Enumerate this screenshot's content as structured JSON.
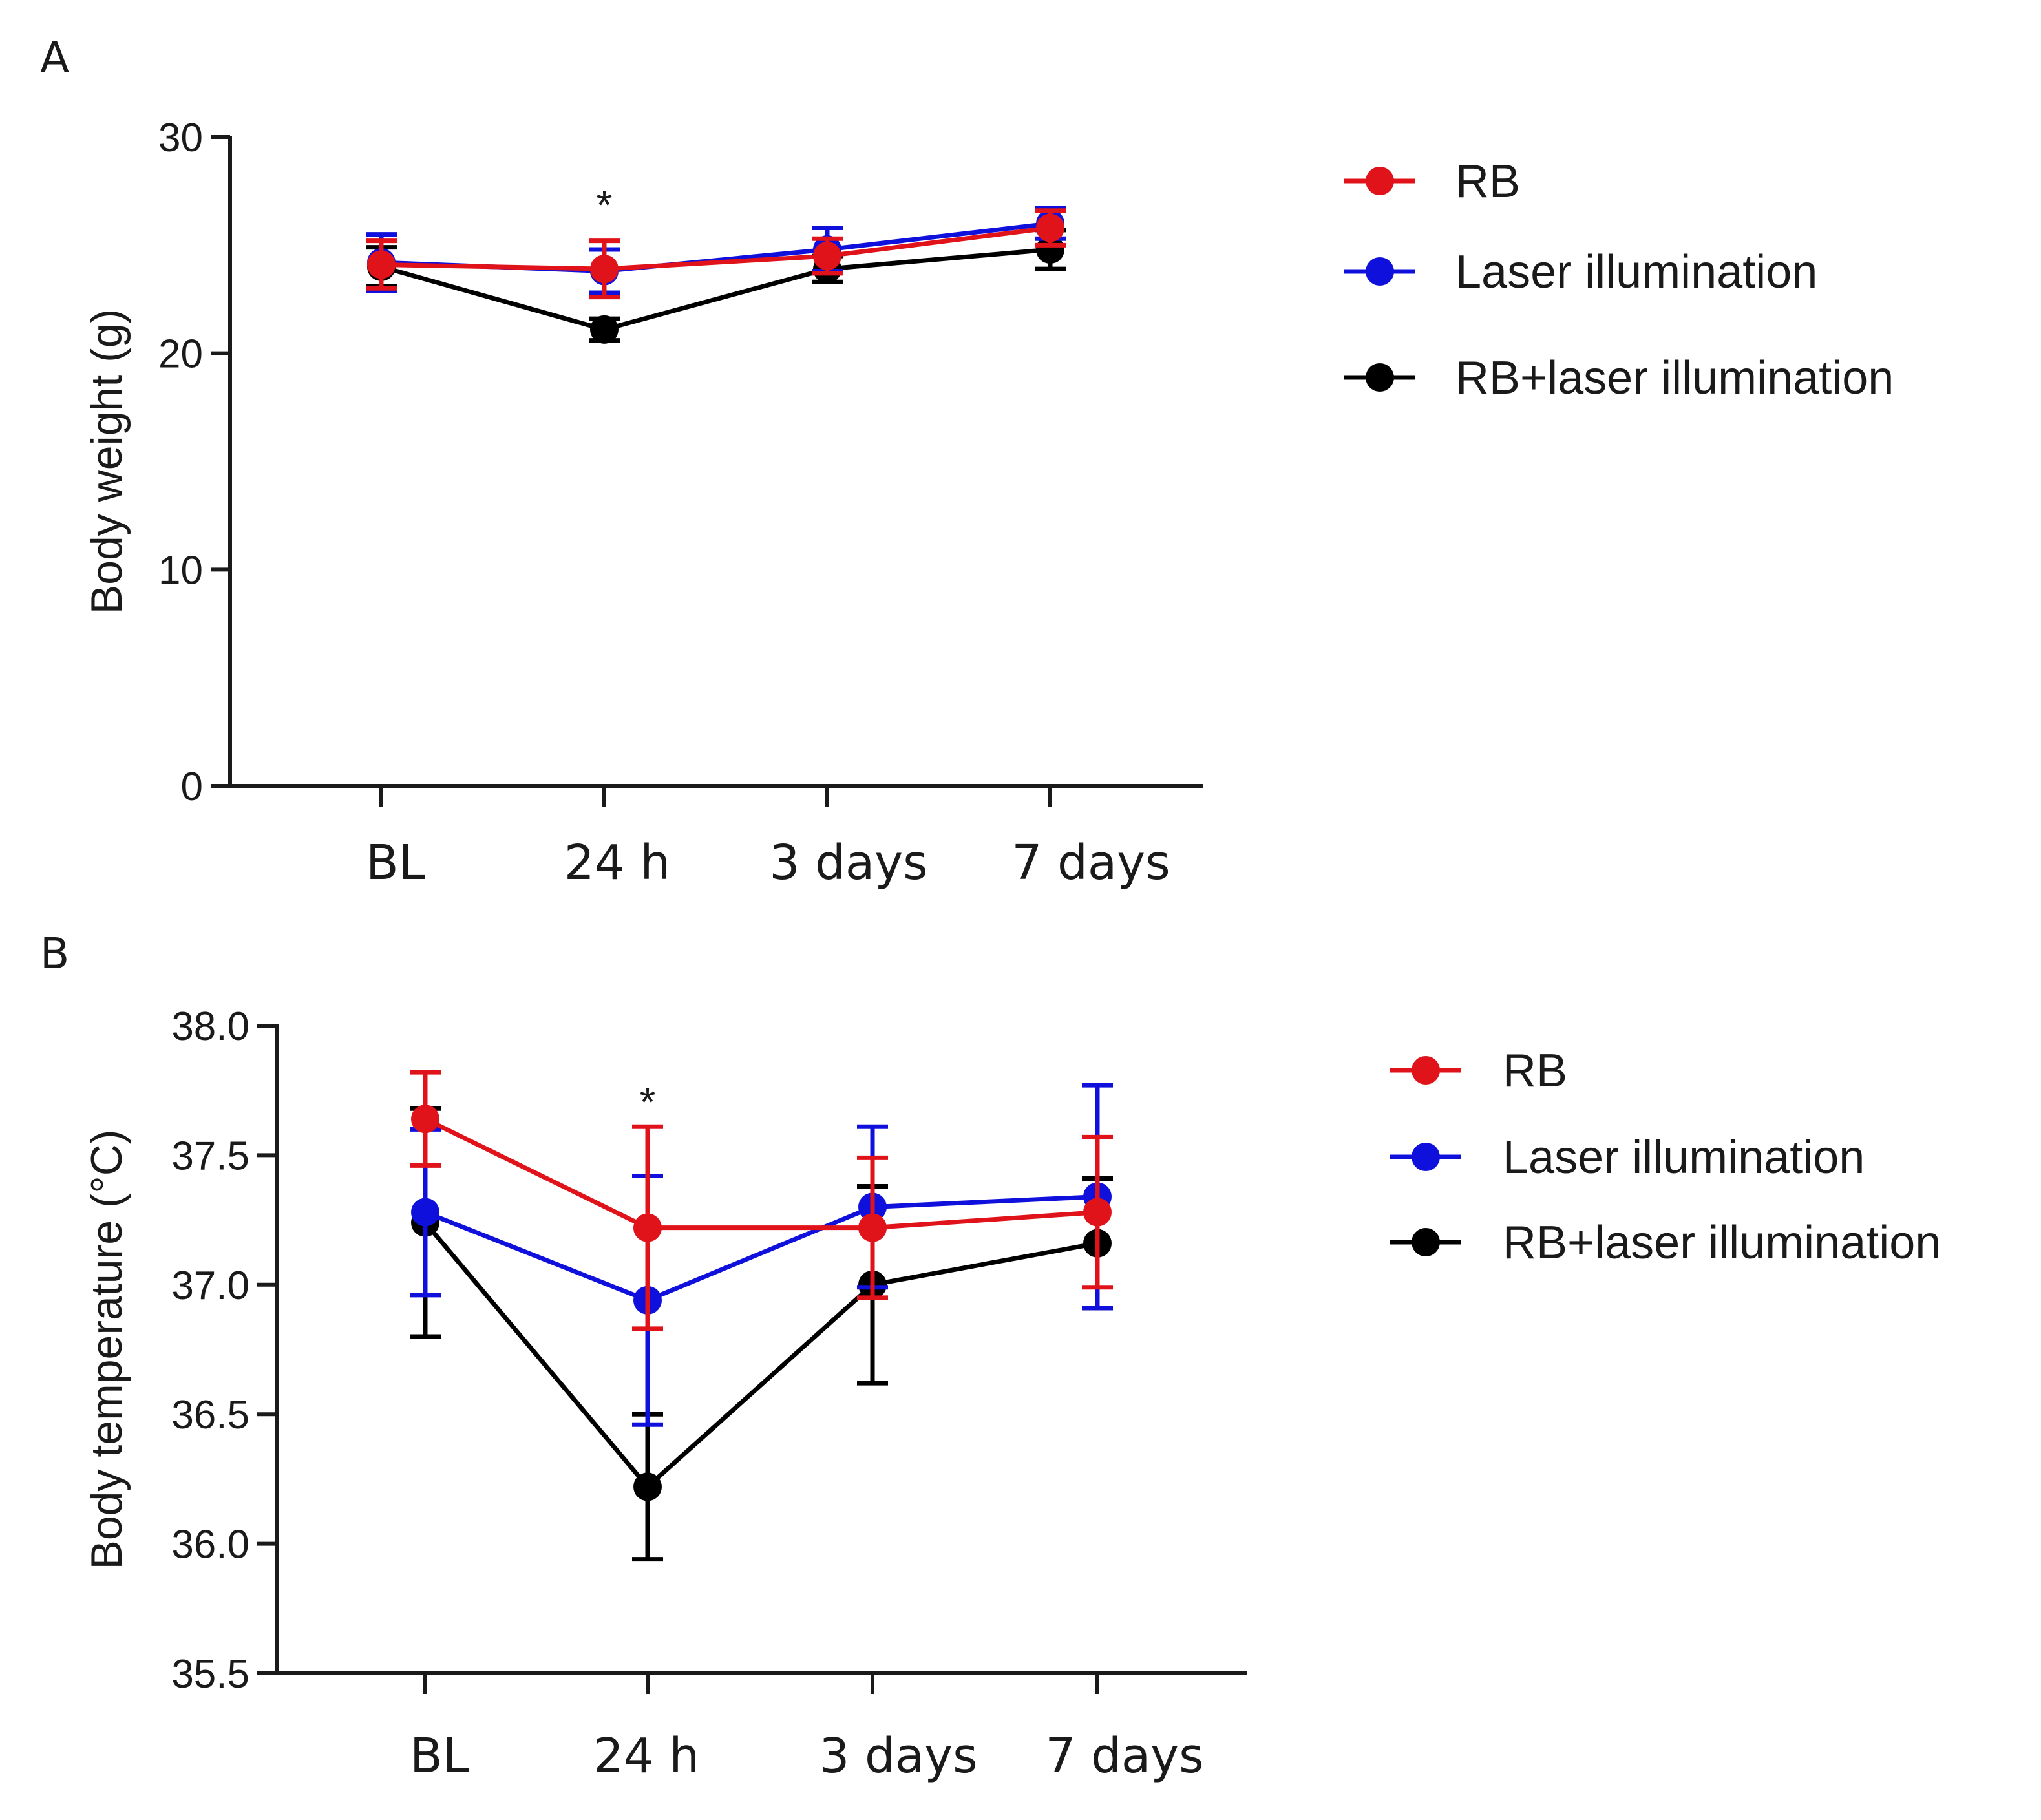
{
  "chart_data": [
    {
      "panel": "A",
      "type": "line",
      "ylabel": "Body weight (g)",
      "xlabel": "",
      "categories": [
        "BL",
        "24 h",
        "3 days",
        "7 days"
      ],
      "ylim": [
        0,
        30
      ],
      "yticks": [
        0,
        10,
        20,
        30
      ],
      "ytick_labels": [
        "0",
        "10",
        "20",
        "30"
      ],
      "series": [
        {
          "name": "RB+laser illumination",
          "color": "#000000",
          "values": [
            24.0,
            21.1,
            23.9,
            24.8
          ],
          "errors": [
            0.9,
            0.5,
            0.6,
            0.9
          ]
        },
        {
          "name": "Laser illumination",
          "color": "#1010dd",
          "values": [
            24.2,
            23.8,
            24.8,
            26.0
          ],
          "errors": [
            1.3,
            1.0,
            1.0,
            0.7
          ]
        },
        {
          "name": "RB",
          "color": "#e0121a",
          "values": [
            24.1,
            23.9,
            24.5,
            25.8
          ],
          "errors": [
            1.1,
            1.3,
            0.8,
            0.8
          ]
        }
      ],
      "legend_order": [
        "RB",
        "Laser illumination",
        "RB+laser illumination"
      ],
      "annotations": [
        {
          "text": "*",
          "category": "24 h",
          "y": 27.4
        }
      ]
    },
    {
      "panel": "B",
      "type": "line",
      "ylabel": "Body temperature (°C)",
      "xlabel": "",
      "categories": [
        "BL",
        "24 h",
        "3 days",
        "7 days"
      ],
      "ylim": [
        35.5,
        38.0
      ],
      "yticks": [
        35.5,
        36.0,
        36.5,
        37.0,
        37.5,
        38.0
      ],
      "ytick_labels": [
        "35.5",
        "36.0",
        "36.5",
        "37.0",
        "37.5",
        "38.0"
      ],
      "series": [
        {
          "name": "RB+laser illumination",
          "color": "#000000",
          "values": [
            37.24,
            36.22,
            37.0,
            37.16
          ],
          "errors": [
            0.44,
            0.28,
            0.38,
            0.25
          ]
        },
        {
          "name": "Laser illumination",
          "color": "#1010dd",
          "values": [
            37.28,
            36.94,
            37.3,
            37.34
          ],
          "errors": [
            0.32,
            0.48,
            0.31,
            0.43
          ]
        },
        {
          "name": "RB",
          "color": "#e0121a",
          "values": [
            37.64,
            37.22,
            37.22,
            37.28
          ],
          "errors": [
            0.18,
            0.39,
            0.27,
            0.29
          ]
        }
      ],
      "legend_order": [
        "RB",
        "Laser illumination",
        "RB+laser illumination"
      ],
      "annotations": [
        {
          "text": "*",
          "category": "24 h",
          "y": 37.75
        }
      ]
    }
  ]
}
